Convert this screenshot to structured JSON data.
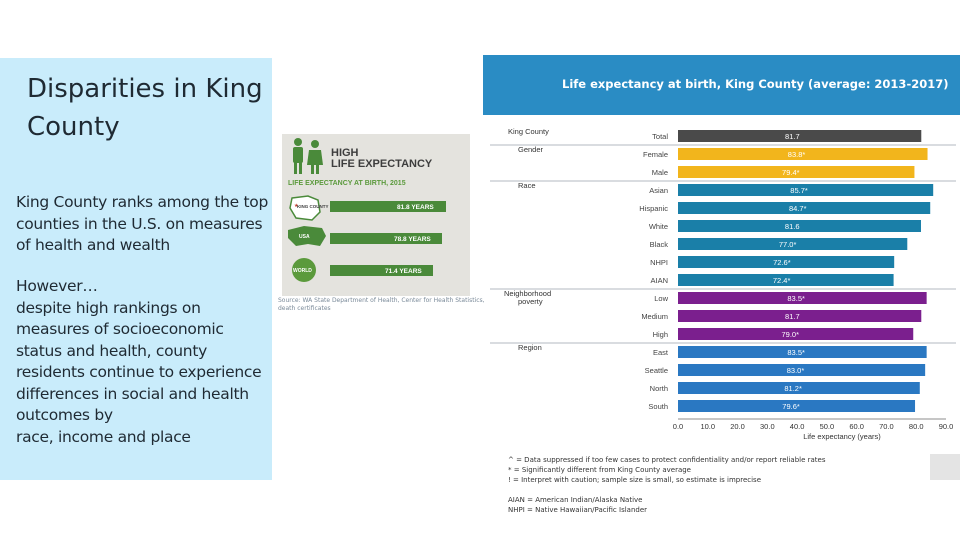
{
  "slide": {
    "title": "Disparities in King County",
    "para1": "King County ranks among the top counties in the U.S. on measures of health and wealth",
    "para2_lines": [
      "However…",
      "despite high rankings on measures of socioeconomic status and health, county residents continue to experience differences in social and health outcomes by",
      "race, income and place"
    ]
  },
  "infographic": {
    "heading_line1": "HIGH",
    "heading_line2": "LIFE EXPECTANCY",
    "subheading": "LIFE EXPECTANCY AT BIRTH, 2015",
    "rows": [
      {
        "label": "KING COUNTY",
        "value_label": "81.8 YEARS",
        "value": 81.8
      },
      {
        "label": "USA",
        "value_label": "78.8 YEARS",
        "value": 78.8
      },
      {
        "label": "WORLD",
        "value_label": "71.4 YEARS",
        "value": 71.4
      }
    ],
    "source": "Source: WA State Department of Health, Center for Health Statistics, death certificates",
    "colors": {
      "bar": "#4a8a3a",
      "accent": "#5b9a3c",
      "bg": "#e4e3de"
    }
  },
  "chart_data": {
    "type": "bar",
    "title": "Life expectancy at birth, King County (average: 2013-2017)",
    "xlabel": "Life expectancy (years)",
    "xlim": [
      0,
      90
    ],
    "ticks": [
      "0.0",
      "10.0",
      "20.0",
      "30.0",
      "40.0",
      "50.0",
      "60.0",
      "70.0",
      "80.0",
      "90.0"
    ],
    "groups": [
      {
        "name": "King County",
        "color": "#4a4a4a",
        "rows": [
          {
            "label": "Total",
            "value": 81.7,
            "text": "81.7"
          }
        ]
      },
      {
        "name": "Gender",
        "color": "#f2b51c",
        "rows": [
          {
            "label": "Female",
            "value": 83.8,
            "text": "83.8*"
          },
          {
            "label": "Male",
            "value": 79.4,
            "text": "79.4*"
          }
        ]
      },
      {
        "name": "Race",
        "color": "#1a7fa8",
        "rows": [
          {
            "label": "Asian",
            "value": 85.7,
            "text": "85.7*"
          },
          {
            "label": "Hispanic",
            "value": 84.7,
            "text": "84.7*"
          },
          {
            "label": "White",
            "value": 81.6,
            "text": "81.6"
          },
          {
            "label": "Black",
            "value": 77.0,
            "text": "77.0*"
          },
          {
            "label": "NHPI",
            "value": 72.6,
            "text": "72.6*"
          },
          {
            "label": "AIAN",
            "value": 72.4,
            "text": "72.4*"
          }
        ]
      },
      {
        "name": "Neighborhood poverty",
        "color": "#7b1f8e",
        "rows": [
          {
            "label": "Low",
            "value": 83.5,
            "text": "83.5*"
          },
          {
            "label": "Medium",
            "value": 81.7,
            "text": "81.7"
          },
          {
            "label": "High",
            "value": 79.0,
            "text": "79.0*"
          }
        ]
      },
      {
        "name": "Region",
        "color": "#2a78c2",
        "rows": [
          {
            "label": "East",
            "value": 83.5,
            "text": "83.5*"
          },
          {
            "label": "Seattle",
            "value": 83.0,
            "text": "83.0*"
          },
          {
            "label": "North",
            "value": 81.2,
            "text": "81.2*"
          },
          {
            "label": "South",
            "value": 79.6,
            "text": "79.6*"
          }
        ]
      }
    ]
  },
  "legend": {
    "lines": [
      "^ = Data suppressed if too few cases to protect confidentiality and/or report reliable rates",
      "* = Significantly different from King County average",
      "! = Interpret with caution; sample size is small, so estimate is imprecise",
      "",
      "AIAN = American Indian/Alaska Native",
      "NHPI = Native Hawaiian/Pacific Islander"
    ]
  }
}
